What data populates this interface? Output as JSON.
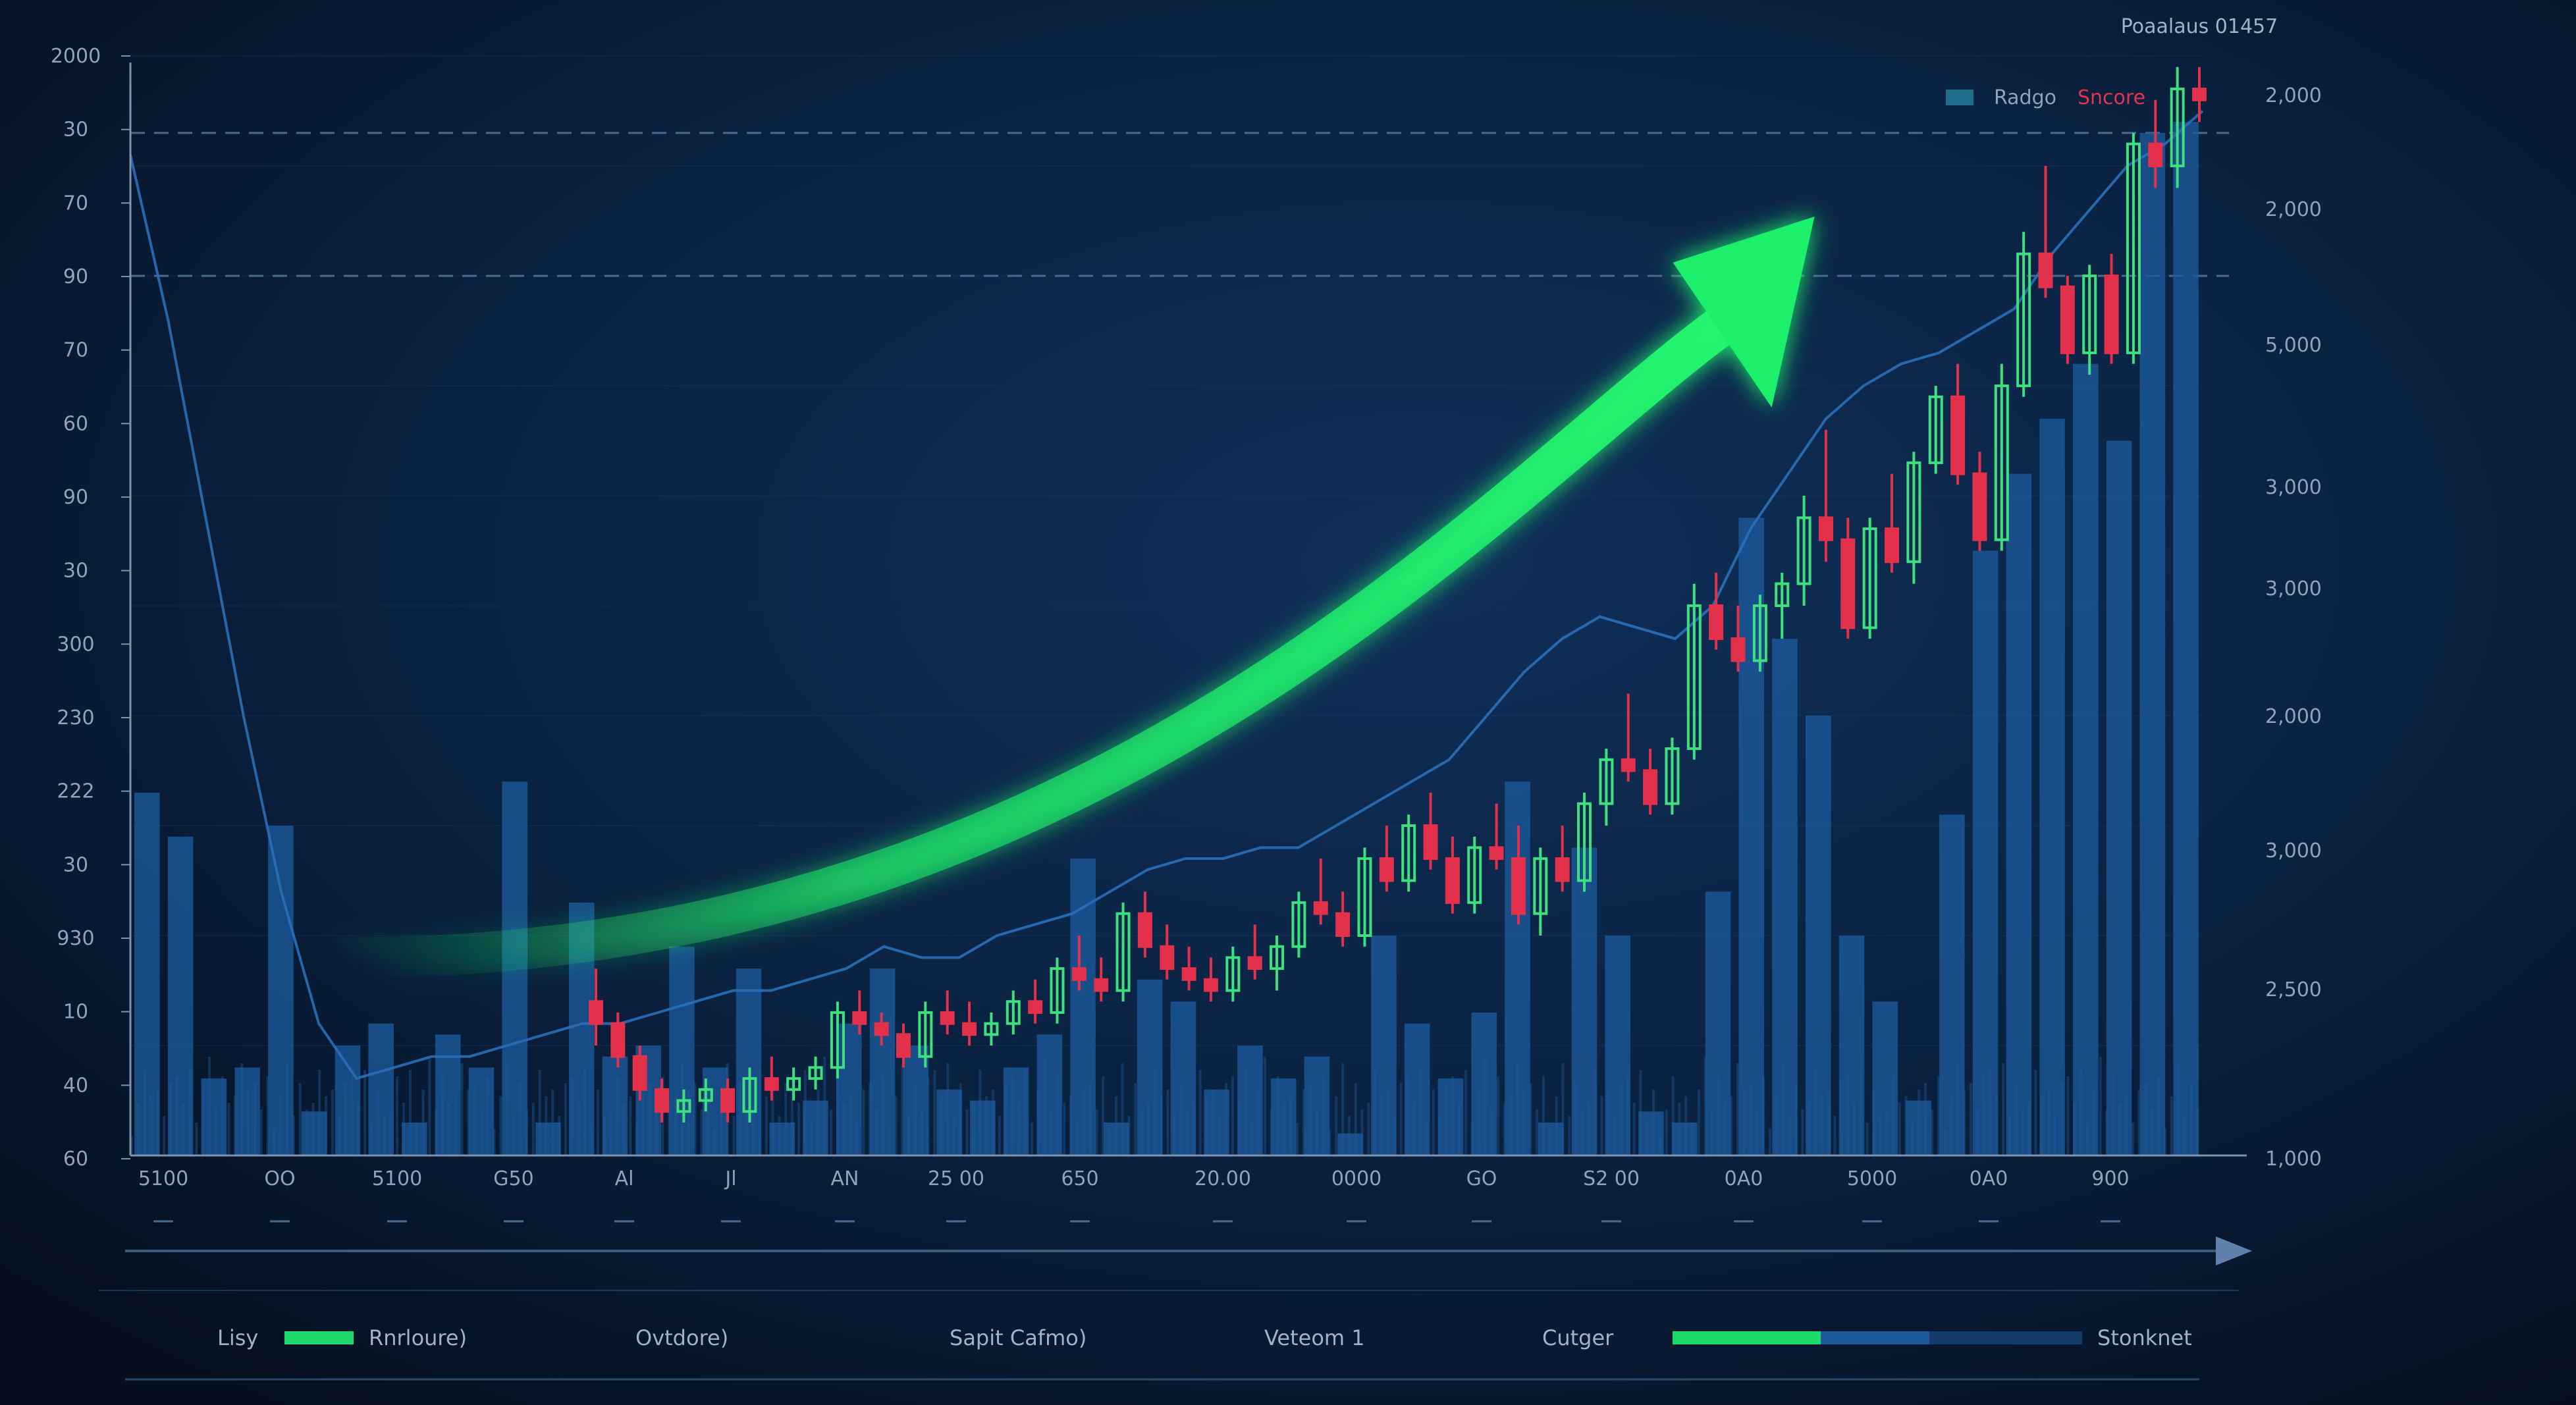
{
  "header_text": "Poaalaus 01457",
  "legend": [
    {
      "label": "Radgo",
      "color": "#1e6f8c"
    },
    {
      "label": "Sncore",
      "color": "#e0344f"
    }
  ],
  "left_axis_labels": [
    "2000",
    "30",
    "70",
    "90",
    "70",
    "60",
    "90",
    "30",
    "300",
    "230",
    "222",
    "30",
    "930",
    "10",
    "40",
    "60"
  ],
  "right_axis_labels": [
    "2,000",
    "2,000",
    "5,000",
    "3,000",
    "3,000",
    "2,000",
    "3,000",
    "2,500",
    "1,000"
  ],
  "x_axis_labels": [
    "5100",
    "OO",
    "5100",
    "G50",
    "Al",
    "Jl",
    "AN",
    "25 00",
    "650",
    "20.00",
    "0000",
    "GO",
    "S2 00",
    "0A0",
    "5000",
    "0A0",
    "900"
  ],
  "footer": {
    "items": [
      "Lisy",
      "Rnrloure)",
      "Ovtdore)",
      "Sapit Cafmo)",
      "Veteom 1",
      "Cutger",
      "Stonknet"
    ]
  },
  "colors": {
    "background": "#08182e",
    "bar": "#1c5a9c",
    "candle_up": "#3de07d",
    "candle_down": "#e3304b",
    "arrow": "#1ef06a",
    "grid": "#1f3a5c"
  },
  "chart_data": {
    "type": "bar",
    "title": "Poaalaus 01457",
    "xlabel": "",
    "ylabel": "",
    "ylim": [
      0,
      100
    ],
    "series": [
      {
        "name": "Radgo",
        "type": "bar",
        "values": [
          33,
          29,
          7,
          8,
          30,
          4,
          10,
          12,
          3,
          11,
          8,
          34,
          3,
          23,
          9,
          10,
          19,
          8,
          17,
          3,
          5,
          12,
          17,
          10,
          6,
          5,
          8,
          11,
          27,
          3,
          16,
          14,
          6,
          10,
          7,
          9,
          2,
          20,
          12,
          7,
          13,
          34,
          3,
          28,
          20,
          4,
          3,
          24,
          58,
          47,
          40,
          20,
          14,
          5,
          31,
          55,
          62,
          67,
          72,
          65,
          93,
          94
        ]
      },
      {
        "name": "Sncore",
        "type": "candlestick",
        "ohlc": [
          [
            14,
            17,
            10,
            12
          ],
          [
            12,
            13,
            8,
            9
          ],
          [
            9,
            10,
            5,
            6
          ],
          [
            6,
            7,
            3,
            4
          ],
          [
            4,
            6,
            3,
            5
          ],
          [
            5,
            7,
            4,
            6
          ],
          [
            6,
            7,
            3,
            4
          ],
          [
            4,
            8,
            3,
            7
          ],
          [
            7,
            9,
            5,
            6
          ],
          [
            6,
            8,
            5,
            7
          ],
          [
            7,
            9,
            6,
            8
          ],
          [
            8,
            14,
            7,
            13
          ],
          [
            13,
            15,
            11,
            12
          ],
          [
            12,
            13,
            10,
            11
          ],
          [
            11,
            12,
            8,
            9
          ],
          [
            9,
            14,
            8,
            13
          ],
          [
            13,
            15,
            11,
            12
          ],
          [
            12,
            14,
            10,
            11
          ],
          [
            11,
            13,
            10,
            12
          ],
          [
            12,
            15,
            11,
            14
          ],
          [
            14,
            16,
            12,
            13
          ],
          [
            13,
            18,
            12,
            17
          ],
          [
            17,
            20,
            15,
            16
          ],
          [
            16,
            18,
            14,
            15
          ],
          [
            15,
            23,
            14,
            22
          ],
          [
            22,
            24,
            18,
            19
          ],
          [
            19,
            21,
            16,
            17
          ],
          [
            17,
            19,
            15,
            16
          ],
          [
            16,
            18,
            14,
            15
          ],
          [
            15,
            19,
            14,
            18
          ],
          [
            18,
            21,
            16,
            17
          ],
          [
            17,
            20,
            15,
            19
          ],
          [
            19,
            24,
            18,
            23
          ],
          [
            23,
            27,
            21,
            22
          ],
          [
            22,
            24,
            19,
            20
          ],
          [
            20,
            28,
            19,
            27
          ],
          [
            27,
            30,
            24,
            25
          ],
          [
            25,
            31,
            24,
            30
          ],
          [
            30,
            33,
            26,
            27
          ],
          [
            27,
            29,
            22,
            23
          ],
          [
            23,
            29,
            22,
            28
          ],
          [
            28,
            32,
            26,
            27
          ],
          [
            27,
            30,
            21,
            22
          ],
          [
            22,
            28,
            20,
            27
          ],
          [
            27,
            30,
            24,
            25
          ],
          [
            25,
            33,
            24,
            32
          ],
          [
            32,
            37,
            30,
            36
          ],
          [
            36,
            42,
            34,
            35
          ],
          [
            35,
            37,
            31,
            32
          ],
          [
            32,
            38,
            31,
            37
          ],
          [
            37,
            52,
            36,
            50
          ],
          [
            50,
            53,
            46,
            47
          ],
          [
            47,
            50,
            44,
            45
          ],
          [
            45,
            51,
            44,
            50
          ],
          [
            50,
            53,
            47,
            52
          ],
          [
            52,
            60,
            50,
            58
          ],
          [
            58,
            66,
            54,
            56
          ],
          [
            56,
            58,
            47,
            48
          ],
          [
            48,
            58,
            47,
            57
          ],
          [
            57,
            62,
            53,
            54
          ],
          [
            54,
            64,
            52,
            63
          ],
          [
            63,
            70,
            62,
            69
          ],
          [
            69,
            72,
            61,
            62
          ],
          [
            62,
            64,
            55,
            56
          ],
          [
            56,
            72,
            55,
            70
          ],
          [
            70,
            84,
            69,
            82
          ],
          [
            82,
            90,
            78,
            79
          ],
          [
            79,
            80,
            72,
            73
          ],
          [
            73,
            81,
            71,
            80
          ],
          [
            80,
            82,
            72,
            73
          ],
          [
            73,
            93,
            72,
            92
          ],
          [
            92,
            96,
            88,
            90
          ],
          [
            90,
            99,
            88,
            97
          ],
          [
            97,
            99,
            94,
            96
          ]
        ]
      },
      {
        "name": "",
        "type": "line",
        "values": [
          91,
          76,
          58,
          40,
          24,
          12,
          7,
          8,
          9,
          9,
          10,
          11,
          12,
          12,
          13,
          14,
          15,
          15,
          16,
          17,
          19,
          18,
          18,
          20,
          21,
          22,
          24,
          26,
          27,
          27,
          28,
          28,
          30,
          32,
          34,
          36,
          40,
          44,
          47,
          49,
          48,
          47,
          50,
          57,
          62,
          67,
          70,
          72,
          73,
          75,
          77,
          82,
          86,
          90,
          92,
          95
        ]
      }
    ],
    "arrow": {
      "from": [
        0.1,
        18
      ],
      "to": [
        0.8,
        83
      ],
      "color": "#1ef06a"
    },
    "grid": true,
    "dashed_lines_y": [
      93,
      80
    ],
    "legend_position": "top-right"
  }
}
